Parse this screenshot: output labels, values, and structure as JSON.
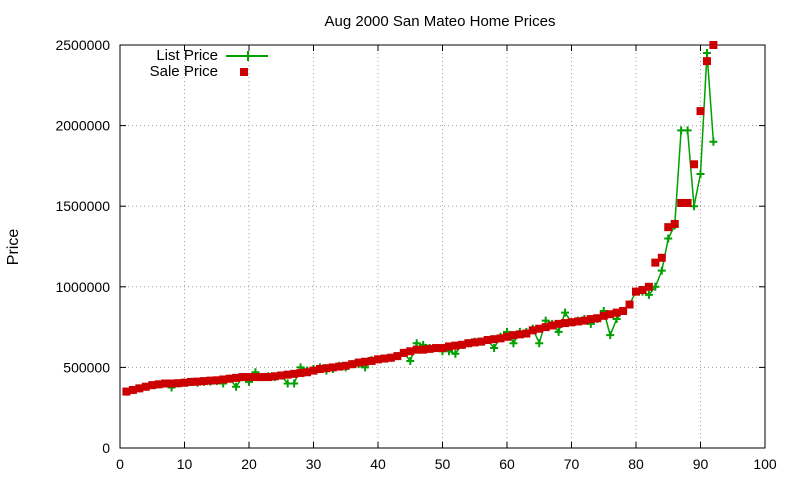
{
  "chart_data": {
    "type": "line",
    "title": "Aug 2000 San Mateo Home Prices",
    "xlabel": "",
    "ylabel": "Price",
    "xlim": [
      0,
      100
    ],
    "ylim": [
      0,
      2500000
    ],
    "xticks": [
      "0",
      "10",
      "20",
      "30",
      "40",
      "50",
      "60",
      "70",
      "80",
      "90",
      "100"
    ],
    "yticks": [
      "0",
      "500000",
      "1000000",
      "1500000",
      "2000000",
      "2500000"
    ],
    "grid": true,
    "legend_position": "top-left",
    "series": [
      {
        "name": "List Price",
        "style": "line-with-plus-markers",
        "color": "#00a000",
        "x": [
          1,
          2,
          3,
          4,
          5,
          6,
          7,
          8,
          9,
          10,
          11,
          12,
          13,
          14,
          15,
          16,
          17,
          18,
          19,
          20,
          21,
          22,
          23,
          24,
          25,
          26,
          27,
          28,
          29,
          30,
          31,
          32,
          33,
          34,
          35,
          36,
          37,
          38,
          39,
          40,
          41,
          42,
          43,
          44,
          45,
          46,
          47,
          48,
          49,
          50,
          51,
          52,
          53,
          54,
          55,
          56,
          57,
          58,
          59,
          60,
          61,
          62,
          63,
          64,
          65,
          66,
          67,
          68,
          69,
          70,
          71,
          72,
          73,
          74,
          75,
          76,
          77,
          78,
          79,
          80,
          81,
          82,
          83,
          84,
          85,
          86,
          87,
          88,
          89,
          90,
          91,
          92
        ],
        "values": [
          350000,
          360000,
          370000,
          380000,
          390000,
          395000,
          400000,
          375000,
          400000,
          405000,
          410000,
          405000,
          410000,
          412000,
          415000,
          400000,
          430000,
          380000,
          440000,
          410000,
          470000,
          440000,
          445000,
          440000,
          450000,
          400000,
          400000,
          500000,
          480000,
          490000,
          500000,
          480000,
          490000,
          510000,
          500000,
          520000,
          520000,
          500000,
          545000,
          550000,
          555000,
          560000,
          570000,
          590000,
          540000,
          650000,
          640000,
          620000,
          620000,
          600000,
          600000,
          585000,
          640000,
          650000,
          660000,
          660000,
          670000,
          620000,
          690000,
          720000,
          650000,
          720000,
          720000,
          740000,
          650000,
          790000,
          770000,
          720000,
          840000,
          780000,
          790000,
          800000,
          770000,
          800000,
          850000,
          700000,
          800000,
          850000,
          890000,
          970000,
          970000,
          950000,
          1000000,
          1100000,
          1300000,
          1380000,
          1970000,
          1970000,
          1500000,
          1700000,
          2450000,
          1900000
        ]
      },
      {
        "name": "Sale Price",
        "style": "square-markers",
        "color": "#cc0000",
        "x": [
          1,
          2,
          3,
          4,
          5,
          6,
          7,
          8,
          9,
          10,
          11,
          12,
          13,
          14,
          15,
          16,
          17,
          18,
          19,
          20,
          21,
          22,
          23,
          24,
          25,
          26,
          27,
          28,
          29,
          30,
          31,
          32,
          33,
          34,
          35,
          36,
          37,
          38,
          39,
          40,
          41,
          42,
          43,
          44,
          45,
          46,
          47,
          48,
          49,
          50,
          51,
          52,
          53,
          54,
          55,
          56,
          57,
          58,
          59,
          60,
          61,
          62,
          63,
          64,
          65,
          66,
          67,
          68,
          69,
          70,
          71,
          72,
          73,
          74,
          75,
          76,
          77,
          78,
          79,
          80,
          81,
          82,
          83,
          84,
          85,
          86,
          87,
          88,
          89,
          90,
          91,
          92
        ],
        "values": [
          350000,
          360000,
          370000,
          380000,
          390000,
          395000,
          400000,
          400000,
          402000,
          405000,
          410000,
          412000,
          415000,
          418000,
          420000,
          425000,
          430000,
          435000,
          440000,
          440000,
          440000,
          440000,
          440000,
          445000,
          450000,
          455000,
          460000,
          465000,
          470000,
          480000,
          490000,
          495000,
          500000,
          505000,
          510000,
          520000,
          530000,
          535000,
          540000,
          550000,
          555000,
          560000,
          570000,
          590000,
          600000,
          610000,
          610000,
          615000,
          620000,
          620000,
          630000,
          635000,
          640000,
          650000,
          655000,
          660000,
          670000,
          675000,
          680000,
          690000,
          700000,
          705000,
          710000,
          730000,
          740000,
          750000,
          760000,
          770000,
          775000,
          780000,
          785000,
          790000,
          800000,
          805000,
          820000,
          830000,
          840000,
          850000,
          890000,
          970000,
          980000,
          1000000,
          1150000,
          1180000,
          1370000,
          1390000,
          1520000,
          1520000,
          1760000,
          2090000,
          2400000,
          2500000
        ]
      }
    ]
  }
}
